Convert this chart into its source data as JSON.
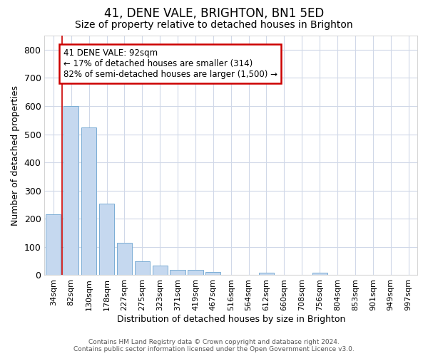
{
  "title": "41, DENE VALE, BRIGHTON, BN1 5ED",
  "subtitle": "Size of property relative to detached houses in Brighton",
  "xlabel": "Distribution of detached houses by size in Brighton",
  "ylabel": "Number of detached properties",
  "bar_labels": [
    "34sqm",
    "82sqm",
    "130sqm",
    "178sqm",
    "227sqm",
    "275sqm",
    "323sqm",
    "371sqm",
    "419sqm",
    "467sqm",
    "516sqm",
    "564sqm",
    "612sqm",
    "660sqm",
    "708sqm",
    "756sqm",
    "804sqm",
    "853sqm",
    "901sqm",
    "949sqm",
    "997sqm"
  ],
  "bar_values": [
    215,
    600,
    525,
    255,
    115,
    50,
    33,
    20,
    18,
    11,
    0,
    0,
    10,
    0,
    0,
    8,
    0,
    0,
    0,
    0,
    0
  ],
  "bar_color": "#c5d8ef",
  "bar_edge_color": "#7aadd4",
  "ylim_max": 850,
  "yticks": [
    0,
    100,
    200,
    300,
    400,
    500,
    600,
    700,
    800
  ],
  "annotation_text": "41 DENE VALE: 92sqm\n← 17% of detached houses are smaller (314)\n82% of semi-detached houses are larger (1,500) →",
  "annotation_box_fc": "#ffffff",
  "annotation_box_ec": "#cc0000",
  "property_line_color": "#cc0000",
  "bg_color": "#ffffff",
  "plot_bg_color": "#ffffff",
  "grid_color": "#d0d8e8",
  "footer_text": "Contains HM Land Registry data © Crown copyright and database right 2024.\nContains public sector information licensed under the Open Government Licence v3.0.",
  "title_fontsize": 12,
  "subtitle_fontsize": 10,
  "tick_fontsize": 8,
  "ytick_fontsize": 9,
  "ylabel_fontsize": 9,
  "xlabel_fontsize": 9,
  "footer_fontsize": 6.5
}
